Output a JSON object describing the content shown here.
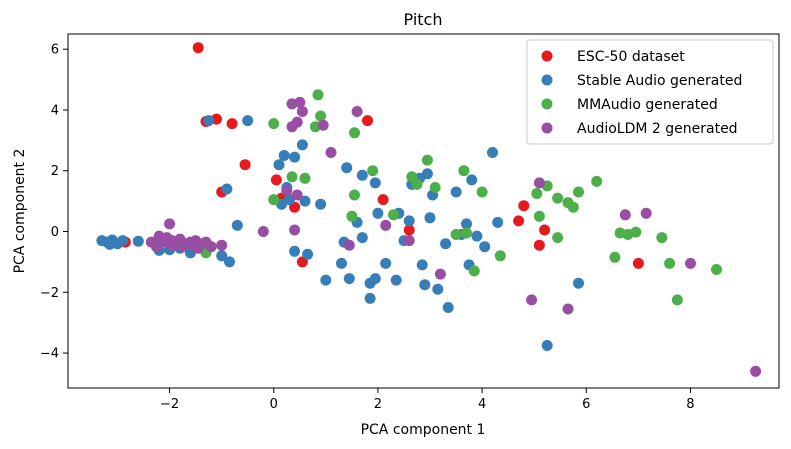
{
  "chart_data": {
    "type": "scatter",
    "title": "Pitch",
    "xlabel": "PCA component 1",
    "ylabel": "PCA component 2",
    "xlim": [
      -3.95,
      9.7
    ],
    "ylim": [
      -5.15,
      6.5
    ],
    "xticks": [
      -2,
      0,
      2,
      4,
      6,
      8
    ],
    "yticks": [
      -4,
      -2,
      0,
      2,
      4,
      6
    ],
    "grid": false,
    "legend_position": "top-right",
    "series": [
      {
        "name": "ESC-50 dataset",
        "color": "#e41a1c",
        "points": [
          [
            -1.45,
            6.05
          ],
          [
            -1.3,
            3.62
          ],
          [
            -1.1,
            3.7
          ],
          [
            -0.8,
            3.55
          ],
          [
            -0.55,
            2.2
          ],
          [
            -1.0,
            1.3
          ],
          [
            0.05,
            1.7
          ],
          [
            0.15,
            1.1
          ],
          [
            0.4,
            0.8
          ],
          [
            0.55,
            -1.0
          ],
          [
            -2.85,
            -0.35
          ],
          [
            1.8,
            3.65
          ],
          [
            2.1,
            1.05
          ],
          [
            2.6,
            0.05
          ],
          [
            4.8,
            0.85
          ],
          [
            4.7,
            0.35
          ],
          [
            5.2,
            0.05
          ],
          [
            5.1,
            -0.45
          ],
          [
            7.0,
            -1.05
          ]
        ]
      },
      {
        "name": "Stable Audio generated",
        "color": "#377eb8",
        "points": [
          [
            -3.3,
            -0.3
          ],
          [
            -3.2,
            -0.35
          ],
          [
            -3.1,
            -0.28
          ],
          [
            -3.0,
            -0.4
          ],
          [
            -2.9,
            -0.3
          ],
          [
            -3.15,
            -0.42
          ],
          [
            -2.6,
            -0.32
          ],
          [
            -2.2,
            -0.62
          ],
          [
            -2.0,
            -0.6
          ],
          [
            -1.8,
            -0.55
          ],
          [
            -1.6,
            -0.7
          ],
          [
            -1.25,
            3.65
          ],
          [
            -0.5,
            3.65
          ],
          [
            -0.9,
            1.4
          ],
          [
            -0.7,
            0.2
          ],
          [
            -1.0,
            -0.8
          ],
          [
            -0.85,
            -1.0
          ],
          [
            0.2,
            2.5
          ],
          [
            0.4,
            2.45
          ],
          [
            0.55,
            2.85
          ],
          [
            0.1,
            2.2
          ],
          [
            0.25,
            1.45
          ],
          [
            0.3,
            1.05
          ],
          [
            0.6,
            1.0
          ],
          [
            0.15,
            0.9
          ],
          [
            0.9,
            0.9
          ],
          [
            0.4,
            -0.65
          ],
          [
            0.65,
            -0.75
          ],
          [
            1.0,
            -1.6
          ],
          [
            1.3,
            -1.05
          ],
          [
            1.45,
            -1.55
          ],
          [
            1.4,
            2.1
          ],
          [
            1.7,
            1.85
          ],
          [
            1.95,
            1.6
          ],
          [
            1.6,
            0.3
          ],
          [
            1.7,
            -0.2
          ],
          [
            2.0,
            0.6
          ],
          [
            1.35,
            -0.35
          ],
          [
            1.95,
            -1.55
          ],
          [
            1.85,
            -1.7
          ],
          [
            1.85,
            -2.2
          ],
          [
            2.15,
            -1.05
          ],
          [
            2.35,
            -1.6
          ],
          [
            2.4,
            0.6
          ],
          [
            2.6,
            0.35
          ],
          [
            2.5,
            -0.3
          ],
          [
            2.8,
            1.75
          ],
          [
            2.95,
            1.9
          ],
          [
            3.05,
            1.2
          ],
          [
            3.0,
            0.45
          ],
          [
            2.85,
            -1.1
          ],
          [
            2.9,
            -1.75
          ],
          [
            3.15,
            -1.9
          ],
          [
            3.35,
            -2.5
          ],
          [
            3.5,
            1.3
          ],
          [
            3.3,
            -0.4
          ],
          [
            3.6,
            -0.1
          ],
          [
            3.8,
            1.7
          ],
          [
            4.2,
            2.6
          ],
          [
            3.7,
            0.25
          ],
          [
            3.9,
            -0.15
          ],
          [
            4.05,
            -0.5
          ],
          [
            4.3,
            0.3
          ],
          [
            3.75,
            -1.1
          ],
          [
            5.25,
            -3.75
          ],
          [
            5.85,
            -1.7
          ],
          [
            2.65,
            1.55
          ]
        ]
      },
      {
        "name": "MMAudio generated",
        "color": "#4daf4a",
        "points": [
          [
            -1.3,
            -0.7
          ],
          [
            0.0,
            3.55
          ],
          [
            0.85,
            4.5
          ],
          [
            0.9,
            3.8
          ],
          [
            0.8,
            3.45
          ],
          [
            1.55,
            3.25
          ],
          [
            0.35,
            1.8
          ],
          [
            0.6,
            1.75
          ],
          [
            0.0,
            1.05
          ],
          [
            1.9,
            2.0
          ],
          [
            1.55,
            1.2
          ],
          [
            1.5,
            0.5
          ],
          [
            2.3,
            0.55
          ],
          [
            2.65,
            1.8
          ],
          [
            2.75,
            1.55
          ],
          [
            2.95,
            2.35
          ],
          [
            3.1,
            1.45
          ],
          [
            3.65,
            2.0
          ],
          [
            4.0,
            1.3
          ],
          [
            3.5,
            -0.1
          ],
          [
            3.7,
            -0.05
          ],
          [
            3.85,
            -1.3
          ],
          [
            4.35,
            -0.8
          ],
          [
            5.05,
            1.25
          ],
          [
            5.25,
            1.5
          ],
          [
            5.45,
            1.1
          ],
          [
            5.65,
            0.95
          ],
          [
            5.85,
            1.3
          ],
          [
            6.2,
            1.65
          ],
          [
            5.1,
            0.5
          ],
          [
            5.45,
            -0.2
          ],
          [
            5.75,
            0.8
          ],
          [
            6.55,
            -0.85
          ],
          [
            6.65,
            -0.05
          ],
          [
            6.8,
            -0.1
          ],
          [
            6.95,
            -0.02
          ],
          [
            7.45,
            -0.2
          ],
          [
            7.6,
            -1.05
          ],
          [
            7.75,
            -2.25
          ],
          [
            8.5,
            -1.25
          ]
        ]
      },
      {
        "name": "AudioLDM 2 generated",
        "color": "#984ea3",
        "points": [
          [
            -2.2,
            -0.15
          ],
          [
            -2.15,
            -0.35
          ],
          [
            -2.1,
            -0.3
          ],
          [
            -2.05,
            -0.2
          ],
          [
            -2.0,
            -0.4
          ],
          [
            -1.95,
            -0.3
          ],
          [
            -1.9,
            -0.45
          ],
          [
            -1.85,
            -0.35
          ],
          [
            -1.8,
            -0.25
          ],
          [
            -1.75,
            -0.5
          ],
          [
            -1.7,
            -0.4
          ],
          [
            -1.6,
            -0.35
          ],
          [
            -1.55,
            -0.45
          ],
          [
            -1.5,
            -0.3
          ],
          [
            -1.45,
            -0.55
          ],
          [
            -1.4,
            -0.4
          ],
          [
            -1.3,
            -0.35
          ],
          [
            -1.2,
            -0.5
          ],
          [
            -2.35,
            -0.35
          ],
          [
            -2.25,
            -0.5
          ],
          [
            -2.0,
            0.25
          ],
          [
            -1.0,
            -0.45
          ],
          [
            -0.2,
            0.0
          ],
          [
            0.35,
            4.2
          ],
          [
            0.5,
            4.25
          ],
          [
            0.55,
            3.95
          ],
          [
            0.45,
            3.6
          ],
          [
            0.35,
            3.45
          ],
          [
            0.95,
            3.5
          ],
          [
            1.6,
            3.95
          ],
          [
            0.25,
            1.35
          ],
          [
            0.45,
            1.2
          ],
          [
            0.4,
            0.05
          ],
          [
            1.1,
            2.6
          ],
          [
            1.45,
            -0.45
          ],
          [
            2.15,
            0.2
          ],
          [
            2.6,
            -0.3
          ],
          [
            3.2,
            -1.4
          ],
          [
            4.95,
            -2.25
          ],
          [
            5.1,
            1.6
          ],
          [
            5.65,
            -2.55
          ],
          [
            6.75,
            0.55
          ],
          [
            7.15,
            0.6
          ],
          [
            8.0,
            -1.05
          ],
          [
            9.25,
            -4.6
          ]
        ]
      }
    ]
  }
}
